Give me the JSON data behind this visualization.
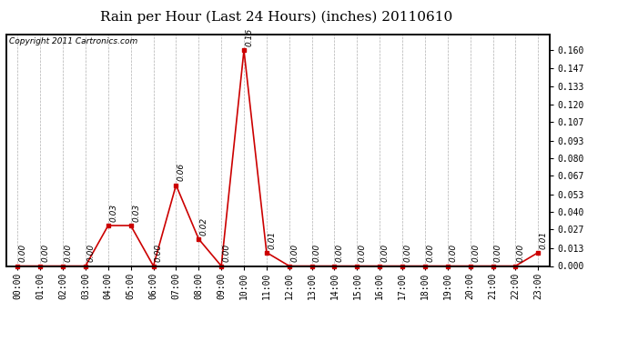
{
  "title": "Rain per Hour (Last 24 Hours) (inches) 20110610",
  "copyright": "Copyright 2011 Cartronics.com",
  "hours": [
    0,
    1,
    2,
    3,
    4,
    5,
    6,
    7,
    8,
    9,
    10,
    11,
    12,
    13,
    14,
    15,
    16,
    17,
    18,
    19,
    20,
    21,
    22,
    23
  ],
  "labels": [
    "00:00",
    "01:00",
    "02:00",
    "03:00",
    "04:00",
    "05:00",
    "06:00",
    "07:00",
    "08:00",
    "09:00",
    "10:00",
    "11:00",
    "12:00",
    "13:00",
    "14:00",
    "15:00",
    "16:00",
    "17:00",
    "18:00",
    "19:00",
    "20:00",
    "21:00",
    "22:00",
    "23:00"
  ],
  "values": [
    0.0,
    0.0,
    0.0,
    0.0,
    0.03,
    0.03,
    0.0,
    0.06,
    0.02,
    0.0,
    0.16,
    0.01,
    0.0,
    0.0,
    0.0,
    0.0,
    0.0,
    0.0,
    0.0,
    0.0,
    0.0,
    0.0,
    0.0,
    0.01
  ],
  "line_color": "#cc0000",
  "marker_color": "#cc0000",
  "bg_color": "#ffffff",
  "plot_bg_color": "#ffffff",
  "grid_color": "#b0b0b0",
  "title_fontsize": 11,
  "annotation_fontsize": 6.5,
  "tick_fontsize": 7,
  "copyright_fontsize": 6.5,
  "yticks_right": [
    0.0,
    0.013,
    0.027,
    0.04,
    0.053,
    0.067,
    0.08,
    0.093,
    0.107,
    0.12,
    0.133,
    0.147,
    0.16
  ],
  "ylim": [
    0.0,
    0.172
  ]
}
